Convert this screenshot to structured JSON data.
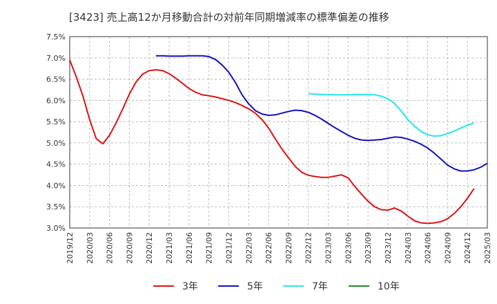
{
  "chart_data": {
    "type": "line",
    "title": "[3423]  売上高12か月移動合計の対前年同期増減率の標準偏差の推移",
    "xlabel": "",
    "ylabel": "",
    "ylim": [
      3.0,
      7.5
    ],
    "y_ticks": [
      "3.0%",
      "3.5%",
      "4.0%",
      "4.5%",
      "5.0%",
      "5.5%",
      "6.0%",
      "6.5%",
      "7.0%",
      "7.5%"
    ],
    "x_ticks": [
      "2019/12",
      "2020/03",
      "2020/06",
      "2020/09",
      "2020/12",
      "2021/03",
      "2021/06",
      "2021/09",
      "2021/12",
      "2022/03",
      "2022/06",
      "2022/09",
      "2022/12",
      "2023/03",
      "2023/06",
      "2023/09",
      "2023/12",
      "2024/03",
      "2024/06",
      "2024/09",
      "2024/12",
      "2025/03"
    ],
    "grid": true,
    "legend_position": "bottom",
    "series": [
      {
        "name": "3年",
        "color": "#dd1111",
        "start": "2019/12",
        "values": [
          6.95,
          6.55,
          6.1,
          5.55,
          5.1,
          4.98,
          5.18,
          5.47,
          5.8,
          6.15,
          6.43,
          6.62,
          6.7,
          6.72,
          6.7,
          6.63,
          6.52,
          6.4,
          6.28,
          6.19,
          6.13,
          6.11,
          6.08,
          6.04,
          6.0,
          5.95,
          5.88,
          5.8,
          5.7,
          5.55,
          5.35,
          5.1,
          4.86,
          4.65,
          4.45,
          4.31,
          4.24,
          4.21,
          4.19,
          4.19,
          4.22,
          4.25,
          4.18,
          3.98,
          3.8,
          3.63,
          3.5,
          3.43,
          3.42,
          3.47,
          3.4,
          3.28,
          3.17,
          3.12,
          3.11,
          3.12,
          3.15,
          3.22,
          3.34,
          3.5,
          3.7,
          3.93
        ]
      },
      {
        "name": "5年",
        "color": "#1111bb",
        "start": "2021/01",
        "values": [
          7.05,
          7.05,
          7.04,
          7.04,
          7.04,
          7.05,
          7.05,
          7.05,
          7.03,
          6.96,
          6.83,
          6.66,
          6.42,
          6.13,
          5.92,
          5.76,
          5.68,
          5.65,
          5.66,
          5.7,
          5.74,
          5.77,
          5.76,
          5.72,
          5.65,
          5.56,
          5.46,
          5.36,
          5.27,
          5.18,
          5.11,
          5.07,
          5.06,
          5.07,
          5.08,
          5.11,
          5.14,
          5.13,
          5.09,
          5.04,
          4.97,
          4.88,
          4.76,
          4.62,
          4.48,
          4.39,
          4.34,
          4.34,
          4.37,
          4.43,
          4.52
        ]
      },
      {
        "name": "7年",
        "color": "#22e6ee",
        "start": "2022/12",
        "values": [
          6.16,
          6.15,
          6.14,
          6.14,
          6.13,
          6.13,
          6.13,
          6.14,
          6.14,
          6.14,
          6.13,
          6.1,
          6.04,
          5.93,
          5.75,
          5.55,
          5.4,
          5.27,
          5.19,
          5.16,
          5.17,
          5.22,
          5.28,
          5.35,
          5.42,
          5.47
        ]
      },
      {
        "name": "10年",
        "color": "#228822",
        "start": "2019/12",
        "values": []
      }
    ]
  }
}
